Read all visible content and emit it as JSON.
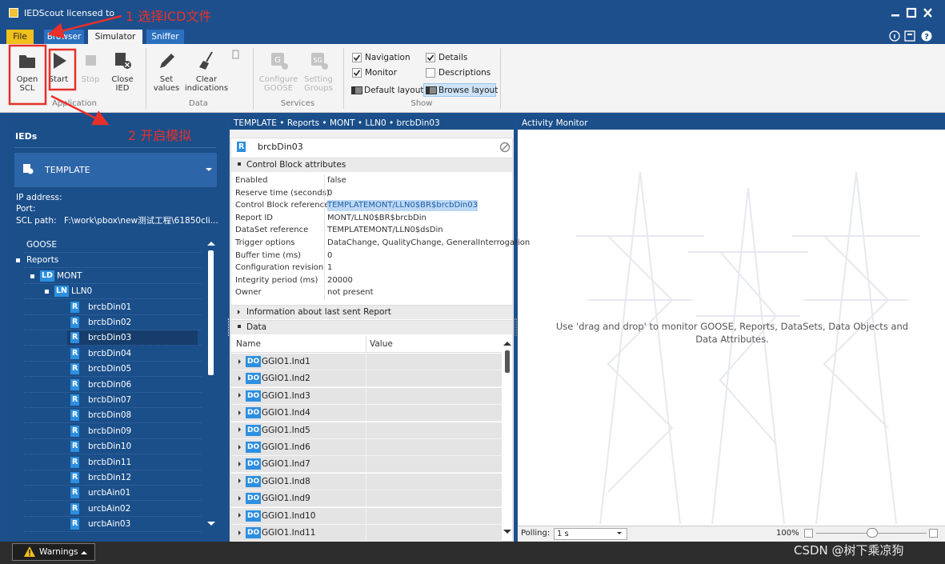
{
  "title_bar": {
    "title": "IEDScout licensed to"
  },
  "annotations": [
    "1 选择ICD文件",
    "2 开启模拟"
  ],
  "tabs": [
    {
      "label": "File",
      "style": "file"
    },
    {
      "label": "Browser"
    },
    {
      "label": "Simulator",
      "selected": true
    },
    {
      "label": "Sniffer"
    }
  ],
  "ribbon": {
    "groups": [
      {
        "label": "Application",
        "buttons": [
          {
            "label": "Open\nSCL",
            "enabled": true,
            "icon": "folder"
          },
          {
            "label": "Start",
            "enabled": true,
            "icon": "play"
          },
          {
            "label": "Stop",
            "enabled": false,
            "icon": "stop"
          },
          {
            "label": "Close\nIED",
            "enabled": true,
            "icon": "close"
          }
        ]
      },
      {
        "label": "Data",
        "buttons": [
          {
            "label": "Set\nvalues",
            "enabled": true,
            "icon": "pen"
          },
          {
            "label": "Clear\nindications",
            "enabled": true,
            "icon": "broom"
          }
        ]
      },
      {
        "label": "Services",
        "buttons": [
          {
            "label": "Configure\nGOOSE",
            "enabled": false,
            "icon": "goose"
          },
          {
            "label": "Setting\nGroups",
            "enabled": false,
            "icon": "sg"
          }
        ]
      }
    ],
    "show": {
      "label": "Show",
      "checkboxes": [
        {
          "label": "Navigation",
          "checked": true
        },
        {
          "label": "Details",
          "checked": true
        },
        {
          "label": "Monitor",
          "checked": true
        },
        {
          "label": "Descriptions",
          "checked": false
        }
      ],
      "layouts": [
        {
          "label": "Default layout"
        },
        {
          "label": "Browse layout",
          "selected": true
        }
      ]
    }
  },
  "left_panel": {
    "title": "IEDs",
    "selected_ied": "TEMPLATE",
    "info": [
      "IP address:",
      "Port:"
    ],
    "scl_path": {
      "label": "SCL path:",
      "value": "F:\\work\\pbox\\new测试工程\\61850cli..."
    },
    "tree": [
      {
        "text": "GOOSE",
        "level": 0
      },
      {
        "text": "Reports",
        "level": 0,
        "expanded": true
      },
      {
        "text": "MONT",
        "level": 1,
        "badge": "LD",
        "expanded": true
      },
      {
        "text": "LLN0",
        "level": 2,
        "badge": "LN",
        "expanded": true
      },
      {
        "text": "brcbDin01",
        "level": 3,
        "badge": "R"
      },
      {
        "text": "brcbDin02",
        "level": 3,
        "badge": "R"
      },
      {
        "text": "brcbDin03",
        "level": 3,
        "badge": "R",
        "selected": true
      },
      {
        "text": "brcbDin04",
        "level": 3,
        "badge": "R"
      },
      {
        "text": "brcbDin05",
        "level": 3,
        "badge": "R"
      },
      {
        "text": "brcbDin06",
        "level": 3,
        "badge": "R"
      },
      {
        "text": "brcbDin07",
        "level": 3,
        "badge": "R"
      },
      {
        "text": "brcbDin08",
        "level": 3,
        "badge": "R"
      },
      {
        "text": "brcbDin09",
        "level": 3,
        "badge": "R"
      },
      {
        "text": "brcbDin10",
        "level": 3,
        "badge": "R"
      },
      {
        "text": "brcbDin11",
        "level": 3,
        "badge": "R"
      },
      {
        "text": "brcbDin12",
        "level": 3,
        "badge": "R"
      },
      {
        "text": "urcbAin01",
        "level": 3,
        "badge": "R"
      },
      {
        "text": "urcbAin02",
        "level": 3,
        "badge": "R"
      },
      {
        "text": "urcbAin03",
        "level": 3,
        "badge": "R"
      }
    ]
  },
  "middle_panel": {
    "breadcrumb": "TEMPLATE • Reports • MONT • LLN0 • brcbDin03",
    "title": "brcbDin03",
    "title_badge": "R",
    "section_attributes": "Control Block attributes",
    "attributes": [
      {
        "label": "Enabled",
        "value": "false"
      },
      {
        "label": "Reserve time (seconds)",
        "value": "0"
      },
      {
        "label": "Control Block reference",
        "value": "TEMPLATEMONT/LLN0$BR$brcbDin03",
        "highlighted": true
      },
      {
        "label": "Report ID",
        "value": "MONT/LLN0$BR$brcbDin"
      },
      {
        "label": "DataSet reference",
        "value": "TEMPLATEMONT/LLN0$dsDin"
      },
      {
        "label": "Trigger options",
        "value": "DataChange, QualityChange, GeneralInterrogation"
      },
      {
        "label": "Buffer time (ms)",
        "value": "0"
      },
      {
        "label": "Configuration revision",
        "value": "1"
      },
      {
        "label": "Integrity period (ms)",
        "value": "20000"
      },
      {
        "label": "Owner",
        "value": "not present"
      }
    ],
    "section_last_report": "Information about last sent Report",
    "section_data": "Data",
    "columns": [
      "Name",
      "Value"
    ],
    "rows": [
      {
        "badge": "DO",
        "name": "GGIO1.Ind1"
      },
      {
        "badge": "DO",
        "name": "GGIO1.Ind2"
      },
      {
        "badge": "DO",
        "name": "GGIO1.Ind3"
      },
      {
        "badge": "DO",
        "name": "GGIO1.Ind4"
      },
      {
        "badge": "DO",
        "name": "GGIO1.Ind5"
      },
      {
        "badge": "DO",
        "name": "GGIO1.Ind6"
      },
      {
        "badge": "DO",
        "name": "GGIO1.Ind7"
      },
      {
        "badge": "DO",
        "name": "GGIO1.Ind8"
      },
      {
        "badge": "DO",
        "name": "GGIO1.Ind9"
      },
      {
        "badge": "DO",
        "name": "GGIO1.Ind10"
      },
      {
        "badge": "DO",
        "name": "GGIO1.Ind11"
      }
    ]
  },
  "right_panel": {
    "title": "Activity Monitor",
    "message": "Use 'drag and drop' to monitor GOOSE, Reports, DataSets, Data Objects and Data Attributes.",
    "polling_label": "Polling:",
    "polling_value": "1 s",
    "zoom": "100%"
  },
  "status_bar": {
    "warnings": "Warnings"
  },
  "watermark": "CSDN @树下乘凉狗"
}
